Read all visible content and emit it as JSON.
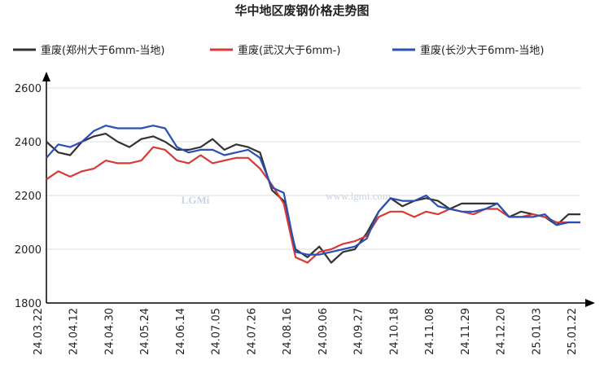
{
  "chart_data": {
    "type": "line",
    "title": "华中地区废钢价格走势图",
    "watermark": [
      "LGMi",
      "www.lgmi.com"
    ],
    "categories": [
      "24.03.22",
      null,
      null,
      "24.04.12",
      null,
      null,
      "24.04.30",
      null,
      null,
      "24.05.24",
      null,
      null,
      "24.06.14",
      null,
      null,
      "24.07.05",
      null,
      null,
      "24.07.26",
      null,
      null,
      "24.08.16",
      null,
      null,
      "24.09.06",
      null,
      null,
      "24.09.27",
      null,
      null,
      "24.10.18",
      null,
      null,
      "24.11.08",
      null,
      null,
      "24.11.29",
      null,
      null,
      "24.12.20",
      null,
      null,
      "25.01.03",
      null,
      null,
      "25.01.22"
    ],
    "series": [
      {
        "name": "重废(郑州大于6mm-当地)",
        "color": "#333333",
        "values": [
          2400,
          2360,
          2350,
          2400,
          2420,
          2430,
          2400,
          2380,
          2410,
          2420,
          2400,
          2370,
          2370,
          2380,
          2410,
          2370,
          2390,
          2380,
          2360,
          2220,
          2180,
          2000,
          1970,
          2010,
          1950,
          1990,
          2000,
          2060,
          2140,
          2190,
          2160,
          2180,
          2190,
          2180,
          2150,
          2170,
          2170,
          2170,
          2170,
          2120,
          2140,
          2130,
          2120,
          2090,
          2130,
          2130
        ]
      },
      {
        "name": "重废(武汉大于6mm-)",
        "color": "#d93a35",
        "values": [
          2260,
          2290,
          2270,
          2290,
          2300,
          2330,
          2320,
          2320,
          2330,
          2380,
          2370,
          2330,
          2320,
          2350,
          2320,
          2330,
          2340,
          2340,
          2300,
          2240,
          2170,
          1970,
          1950,
          1990,
          2000,
          2020,
          2030,
          2050,
          2120,
          2140,
          2140,
          2120,
          2140,
          2130,
          2150,
          2140,
          2130,
          2150,
          2150,
          2120,
          2120,
          2130,
          2120,
          2100,
          2100,
          2100
        ]
      },
      {
        "name": "重废(长沙大于6mm-当地)",
        "color": "#2a4fb5",
        "values": [
          2340,
          2390,
          2380,
          2400,
          2440,
          2460,
          2450,
          2450,
          2450,
          2460,
          2450,
          2380,
          2360,
          2370,
          2370,
          2350,
          2360,
          2370,
          2340,
          2230,
          2210,
          1990,
          1980,
          1980,
          1990,
          2000,
          2010,
          2040,
          2140,
          2190,
          2180,
          2180,
          2200,
          2160,
          2150,
          2140,
          2140,
          2150,
          2170,
          2120,
          2120,
          2120,
          2130,
          2090,
          2100,
          2100
        ]
      }
    ],
    "ylim": [
      1800,
      2600
    ],
    "yticks": [
      1800,
      2000,
      2200,
      2400,
      2600
    ],
    "grid": true
  }
}
